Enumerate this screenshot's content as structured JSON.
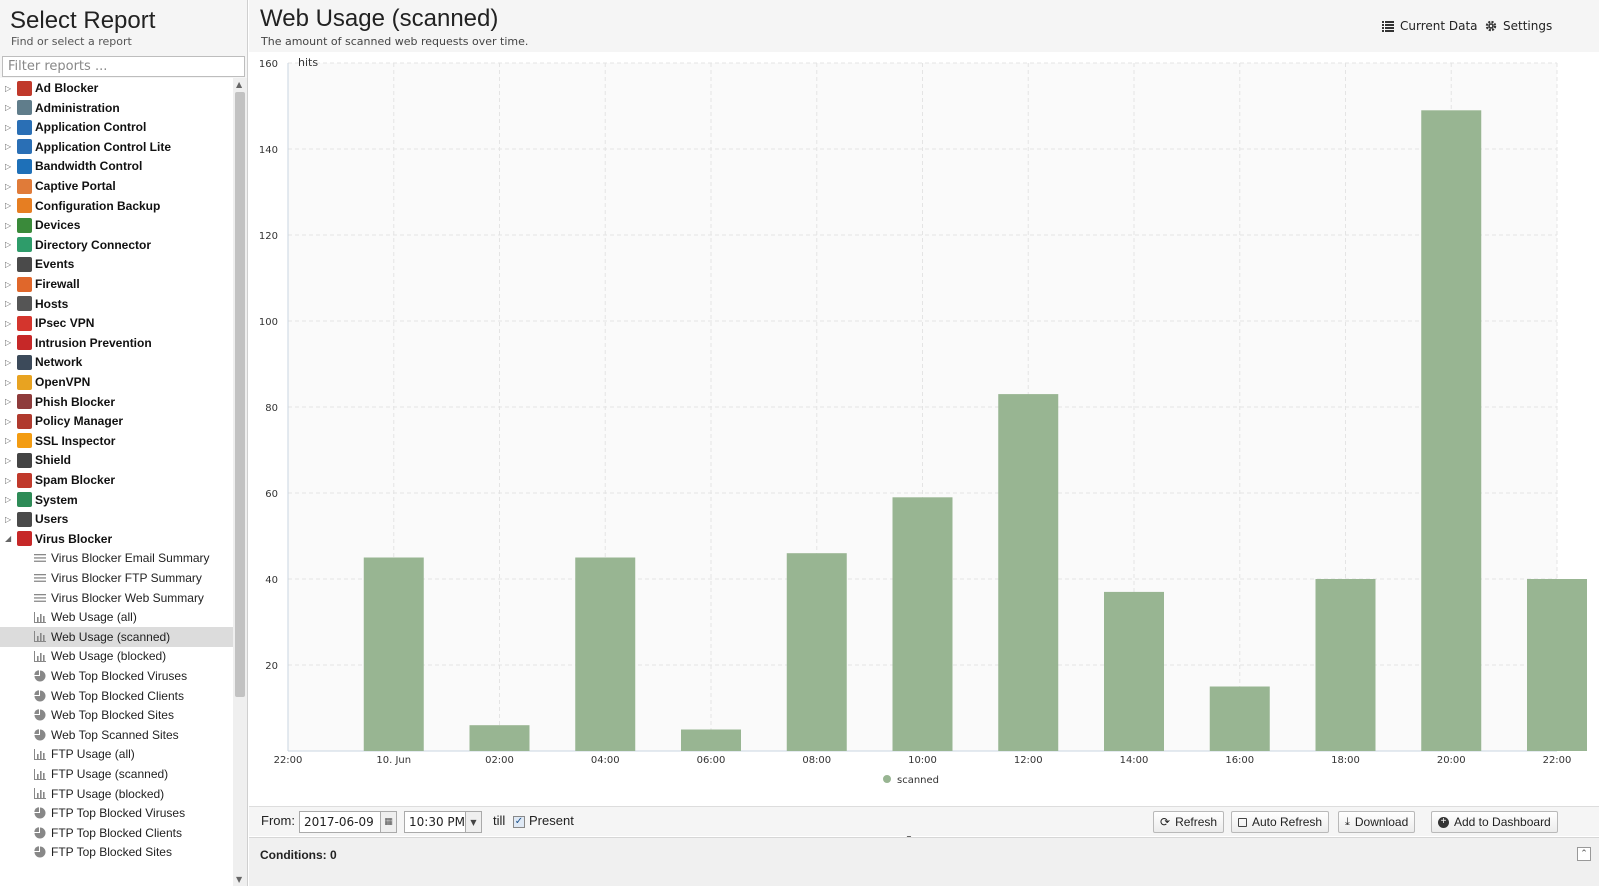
{
  "sidebar": {
    "title": "Select Report",
    "subtitle": "Find or select a report",
    "filter_placeholder": "Filter reports ...",
    "categories": [
      {
        "label": "Ad Blocker",
        "icon": "ad-blocker-icon",
        "color": "#c0392b"
      },
      {
        "label": "Administration",
        "icon": "administration-icon",
        "color": "#607d8b"
      },
      {
        "label": "Application Control",
        "icon": "application-control-icon",
        "color": "#2a6fb5"
      },
      {
        "label": "Application Control Lite",
        "icon": "application-control-lite-icon",
        "color": "#2a6fb5"
      },
      {
        "label": "Bandwidth Control",
        "icon": "bandwidth-control-icon",
        "color": "#1e70b8"
      },
      {
        "label": "Captive Portal",
        "icon": "captive-portal-icon",
        "color": "#e07b39"
      },
      {
        "label": "Configuration Backup",
        "icon": "configuration-backup-icon",
        "color": "#e67e22"
      },
      {
        "label": "Devices",
        "icon": "devices-icon",
        "color": "#3a8a3a"
      },
      {
        "label": "Directory Connector",
        "icon": "directory-connector-icon",
        "color": "#2e9c6a"
      },
      {
        "label": "Events",
        "icon": "events-icon",
        "color": "#4a4a4a"
      },
      {
        "label": "Firewall",
        "icon": "firewall-icon",
        "color": "#e0672b"
      },
      {
        "label": "Hosts",
        "icon": "hosts-icon",
        "color": "#555555"
      },
      {
        "label": "IPsec VPN",
        "icon": "ipsec-vpn-icon",
        "color": "#d4352d"
      },
      {
        "label": "Intrusion Prevention",
        "icon": "intrusion-prevention-icon",
        "color": "#c62828"
      },
      {
        "label": "Network",
        "icon": "network-icon",
        "color": "#3c4a5a"
      },
      {
        "label": "OpenVPN",
        "icon": "openvpn-icon",
        "color": "#e8a321"
      },
      {
        "label": "Phish Blocker",
        "icon": "phish-blocker-icon",
        "color": "#8e3b3b"
      },
      {
        "label": "Policy Manager",
        "icon": "policy-manager-icon",
        "color": "#b03a2e"
      },
      {
        "label": "SSL Inspector",
        "icon": "ssl-inspector-icon",
        "color": "#f39c12"
      },
      {
        "label": "Shield",
        "icon": "shield-icon",
        "color": "#444444"
      },
      {
        "label": "Spam Blocker",
        "icon": "spam-blocker-icon",
        "color": "#c0392b"
      },
      {
        "label": "System",
        "icon": "system-icon",
        "color": "#2e8b57"
      },
      {
        "label": "Users",
        "icon": "users-icon",
        "color": "#4a4a4a"
      },
      {
        "label": "Virus Blocker",
        "icon": "virus-blocker-icon",
        "color": "#c62828"
      }
    ],
    "virus_blocker_reports": [
      {
        "label": "Virus Blocker Email Summary",
        "icon": "text-report-icon"
      },
      {
        "label": "Virus Blocker FTP Summary",
        "icon": "text-report-icon"
      },
      {
        "label": "Virus Blocker Web Summary",
        "icon": "text-report-icon"
      },
      {
        "label": "Web Usage (all)",
        "icon": "bar-chart-icon"
      },
      {
        "label": "Web Usage (scanned)",
        "icon": "bar-chart-icon",
        "selected": true
      },
      {
        "label": "Web Usage (blocked)",
        "icon": "bar-chart-icon"
      },
      {
        "label": "Web Top Blocked Viruses",
        "icon": "pie-chart-icon"
      },
      {
        "label": "Web Top Blocked Clients",
        "icon": "pie-chart-icon"
      },
      {
        "label": "Web Top Blocked Sites",
        "icon": "pie-chart-icon"
      },
      {
        "label": "Web Top Scanned Sites",
        "icon": "pie-chart-icon"
      },
      {
        "label": "FTP Usage (all)",
        "icon": "bar-chart-icon"
      },
      {
        "label": "FTP Usage (scanned)",
        "icon": "bar-chart-icon"
      },
      {
        "label": "FTP Usage (blocked)",
        "icon": "bar-chart-icon"
      },
      {
        "label": "FTP Top Blocked Viruses",
        "icon": "pie-chart-icon"
      },
      {
        "label": "FTP Top Blocked Clients",
        "icon": "pie-chart-icon"
      },
      {
        "label": "FTP Top Blocked Sites",
        "icon": "pie-chart-icon"
      }
    ]
  },
  "header": {
    "title": "Web Usage (scanned)",
    "description": "The amount of scanned web requests over time.",
    "current_data_label": "Current Data",
    "settings_label": "Settings"
  },
  "chart_data": {
    "type": "bar",
    "ylabel": "hits",
    "ylim": [
      0,
      160
    ],
    "yticks": [
      20,
      40,
      60,
      80,
      100,
      120,
      140,
      160
    ],
    "xticks": [
      "22:00",
      "10. Jun",
      "02:00",
      "04:00",
      "06:00",
      "08:00",
      "10:00",
      "12:00",
      "14:00",
      "16:00",
      "18:00",
      "20:00",
      "22:00"
    ],
    "categories": [
      "10. Jun",
      "02:00",
      "04:00",
      "06:00",
      "08:00",
      "10:00",
      "12:00",
      "14:00",
      "16:00",
      "18:00",
      "20:00",
      "22:00"
    ],
    "series": [
      {
        "name": "scanned",
        "color": "#98b592",
        "values": [
          45,
          6,
          45,
          5,
          46,
          59,
          83,
          37,
          15,
          40,
          149,
          40
        ]
      }
    ],
    "legend_position": "bottom",
    "grid": true
  },
  "toolbar": {
    "from_label": "From:",
    "from_date": "2017-06-09",
    "from_time": "10:30 PM",
    "till_label": "till",
    "present_label": "Present",
    "present_checked": true,
    "refresh_label": "Refresh",
    "auto_refresh_label": "Auto Refresh",
    "download_label": "Download",
    "add_dashboard_label": "Add to Dashboard"
  },
  "conditions": {
    "label": "Conditions: 0"
  }
}
